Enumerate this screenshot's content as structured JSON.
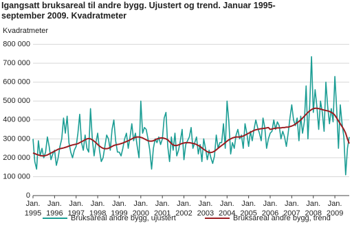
{
  "chart_data": {
    "type": "line",
    "title": "Igangsatt bruksareal til andre bygg. Ujustert og trend. Januar 1995-september 2009. Kvadratmeter",
    "y_label": "Kvadratmeter",
    "categories": [
      "Jan. 1995",
      null,
      null,
      null,
      null,
      null,
      null,
      null,
      null,
      null,
      null,
      null,
      "Jan. 1996",
      null,
      null,
      null,
      null,
      null,
      null,
      null,
      null,
      null,
      null,
      null,
      "Jan. 1997",
      null,
      null,
      null,
      null,
      null,
      null,
      null,
      null,
      null,
      null,
      null,
      "Jan. 1998",
      null,
      null,
      null,
      null,
      null,
      null,
      null,
      null,
      null,
      null,
      null,
      "Jan. 1999",
      null,
      null,
      null,
      null,
      null,
      null,
      null,
      null,
      null,
      null,
      null,
      "Jan. 2000",
      null,
      null,
      null,
      null,
      null,
      null,
      null,
      null,
      null,
      null,
      null,
      "Jan. 2001",
      null,
      null,
      null,
      null,
      null,
      null,
      null,
      null,
      null,
      null,
      null,
      "Jan. 2002",
      null,
      null,
      null,
      null,
      null,
      null,
      null,
      null,
      null,
      null,
      null,
      "Jan. 2003",
      null,
      null,
      null,
      null,
      null,
      null,
      null,
      null,
      null,
      null,
      null,
      "Jan. 2004",
      null,
      null,
      null,
      null,
      null,
      null,
      null,
      null,
      null,
      null,
      null,
      "Jan. 2005",
      null,
      null,
      null,
      null,
      null,
      null,
      null,
      null,
      null,
      null,
      null,
      "Jan. 2006",
      null,
      null,
      null,
      null,
      null,
      null,
      null,
      null,
      null,
      null,
      null,
      "Jan. 2007",
      null,
      null,
      null,
      null,
      null,
      null,
      null,
      null,
      null,
      null,
      null,
      "Jan. 2008",
      null,
      null,
      null,
      null,
      null,
      null,
      null,
      null,
      null,
      null,
      null,
      "Jan. 2009",
      null,
      null,
      null,
      null,
      null,
      null,
      null,
      null
    ],
    "series": [
      {
        "name": "Bruksareal andre bygg, ujustert",
        "color": "#1b9d94",
        "values": [
          300000,
          180000,
          140000,
          290000,
          210000,
          250000,
          200000,
          230000,
          310000,
          260000,
          190000,
          220000,
          240000,
          160000,
          200000,
          260000,
          300000,
          410000,
          330000,
          420000,
          280000,
          230000,
          200000,
          240000,
          260000,
          330000,
          430000,
          280000,
          240000,
          320000,
          250000,
          230000,
          460000,
          300000,
          210000,
          280000,
          330000,
          240000,
          180000,
          200000,
          260000,
          320000,
          300000,
          240000,
          350000,
          400000,
          290000,
          230000,
          230000,
          210000,
          250000,
          300000,
          330000,
          250000,
          310000,
          380000,
          290000,
          330000,
          260000,
          200000,
          500000,
          330000,
          360000,
          350000,
          300000,
          240000,
          140000,
          250000,
          300000,
          280000,
          310000,
          270000,
          300000,
          410000,
          440000,
          260000,
          180000,
          310000,
          240000,
          330000,
          210000,
          240000,
          290000,
          350000,
          190000,
          270000,
          290000,
          310000,
          360000,
          250000,
          280000,
          310000,
          220000,
          270000,
          180000,
          300000,
          250000,
          190000,
          240000,
          200000,
          170000,
          210000,
          320000,
          250000,
          280000,
          280000,
          380000,
          250000,
          500000,
          390000,
          220000,
          280000,
          250000,
          320000,
          350000,
          300000,
          320000,
          250000,
          380000,
          330000,
          260000,
          340000,
          290000,
          350000,
          400000,
          360000,
          330000,
          290000,
          410000,
          360000,
          250000,
          300000,
          330000,
          340000,
          400000,
          350000,
          390000,
          370000,
          300000,
          340000,
          310000,
          260000,
          330000,
          410000,
          480000,
          400000,
          370000,
          410000,
          290000,
          420000,
          330000,
          390000,
          580000,
          300000,
          480000,
          735000,
          440000,
          560000,
          470000,
          350000,
          500000,
          440000,
          340000,
          600000,
          470000,
          380000,
          460000,
          390000,
          630000,
          460000,
          250000,
          480000,
          380000,
          310000,
          110000,
          250000,
          310000
        ]
      },
      {
        "name": "Bruksareal andre bygg, trend",
        "color": "#9b1c20",
        "values": [
          225000,
          222000,
          218000,
          215000,
          212000,
          210000,
          210000,
          212000,
          215000,
          220000,
          225000,
          230000,
          235000,
          240000,
          245000,
          248000,
          250000,
          252000,
          255000,
          258000,
          262000,
          265000,
          268000,
          270000,
          272000,
          275000,
          280000,
          285000,
          290000,
          295000,
          300000,
          302000,
          300000,
          295000,
          288000,
          280000,
          270000,
          262000,
          255000,
          250000,
          248000,
          248000,
          250000,
          255000,
          260000,
          265000,
          268000,
          270000,
          272000,
          275000,
          278000,
          282000,
          286000,
          290000,
          295000,
          300000,
          305000,
          308000,
          310000,
          310000,
          308000,
          305000,
          300000,
          295000,
          290000,
          288000,
          288000,
          290000,
          295000,
          300000,
          302000,
          305000,
          305000,
          303000,
          300000,
          295000,
          285000,
          275000,
          268000,
          265000,
          265000,
          268000,
          272000,
          276000,
          278000,
          280000,
          280000,
          280000,
          278000,
          276000,
          274000,
          270000,
          265000,
          260000,
          252000,
          245000,
          238000,
          232000,
          228000,
          228000,
          230000,
          235000,
          242000,
          250000,
          258000,
          265000,
          272000,
          280000,
          288000,
          295000,
          300000,
          305000,
          308000,
          310000,
          310000,
          310000,
          312000,
          315000,
          320000,
          325000,
          330000,
          335000,
          340000,
          345000,
          348000,
          350000,
          352000,
          354000,
          355000,
          356000,
          358000,
          360000,
          350000,
          352000,
          355000,
          356000,
          358000,
          358000,
          358000,
          360000,
          360000,
          362000,
          362000,
          365000,
          368000,
          372000,
          378000,
          385000,
          392000,
          400000,
          410000,
          420000,
          430000,
          440000,
          448000,
          455000,
          460000,
          462000,
          462000,
          460000,
          458000,
          455000,
          452000,
          450000,
          448000,
          445000,
          440000,
          435000,
          425000,
          410000,
          395000,
          380000,
          365000,
          350000,
          330000,
          300000,
          275000
        ]
      }
    ],
    "ylim": [
      0,
      800000
    ],
    "yticks": [
      {
        "value": 0,
        "label": "0"
      },
      {
        "value": 100000,
        "label": "100 000"
      },
      {
        "value": 200000,
        "label": "200 000"
      },
      {
        "value": 300000,
        "label": "300 000"
      },
      {
        "value": 400000,
        "label": "400 000"
      },
      {
        "value": 500000,
        "label": "500 000"
      },
      {
        "value": 600000,
        "label": "600 000"
      },
      {
        "value": 700000,
        "label": "700 000"
      },
      {
        "value": 800000,
        "label": "800 000"
      }
    ],
    "grid": true
  }
}
